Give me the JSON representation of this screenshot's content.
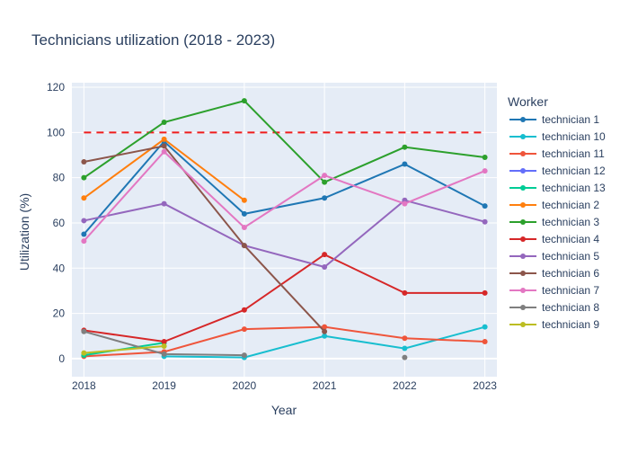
{
  "chart_data": {
    "type": "line",
    "title": "Technicians utilization (2018 - 2023)",
    "xlabel": "Year",
    "ylabel": "Utilization (%)",
    "x": [
      2018,
      2019,
      2020,
      2021,
      2022,
      2023
    ],
    "xlim": [
      2017.85,
      2023.15
    ],
    "ylim": [
      -8,
      122
    ],
    "yticks": [
      0,
      20,
      40,
      60,
      80,
      100,
      120
    ],
    "grid": true,
    "legend_title": "Worker",
    "legend_position": "right",
    "reference_line": {
      "y": 100,
      "x_range": [
        2018,
        2023
      ],
      "color": "#ef1c1c",
      "style": "dashed"
    },
    "series": [
      {
        "name": "technician 1",
        "color": "#1f77b4",
        "values": [
          55,
          96,
          64,
          71,
          86,
          67.5
        ]
      },
      {
        "name": "technician 10",
        "color": "#17becf",
        "values": [
          null,
          1,
          0.5,
          10,
          4.5,
          14
        ]
      },
      {
        "name": "technician 11",
        "color": "#ef553b",
        "values": [
          1,
          3,
          13,
          14,
          9,
          7.5
        ]
      },
      {
        "name": "technician 12",
        "color": "#636efa",
        "values": [
          null,
          null,
          null,
          null,
          null,
          null
        ]
      },
      {
        "name": "technician 13",
        "color": "#00cc96",
        "values": [
          1.5,
          7,
          null,
          null,
          null,
          null
        ]
      },
      {
        "name": "technician 2",
        "color": "#ff7f0e",
        "values": [
          71,
          97,
          70,
          null,
          null,
          null
        ]
      },
      {
        "name": "technician 3",
        "color": "#2ca02c",
        "values": [
          80,
          104.5,
          114,
          78,
          93.5,
          89
        ]
      },
      {
        "name": "technician 4",
        "color": "#d62728",
        "values": [
          12.5,
          7.5,
          21.5,
          46,
          29,
          29
        ]
      },
      {
        "name": "technician 5",
        "color": "#9467bd",
        "values": [
          61,
          68.5,
          50,
          40.5,
          70,
          60.5
        ]
      },
      {
        "name": "technician 6",
        "color": "#8c564b",
        "values": [
          87,
          94,
          50,
          12,
          null,
          null
        ]
      },
      {
        "name": "technician 7",
        "color": "#e377c2",
        "values": [
          52,
          91.5,
          58,
          81,
          68.5,
          83
        ]
      },
      {
        "name": "technician 8",
        "color": "#7f7f7f",
        "values": [
          12,
          2,
          1.5,
          null,
          0.5,
          null
        ]
      },
      {
        "name": "technician 9",
        "color": "#bcbd22",
        "values": [
          2.5,
          5.5,
          null,
          null,
          null,
          null
        ]
      }
    ]
  }
}
